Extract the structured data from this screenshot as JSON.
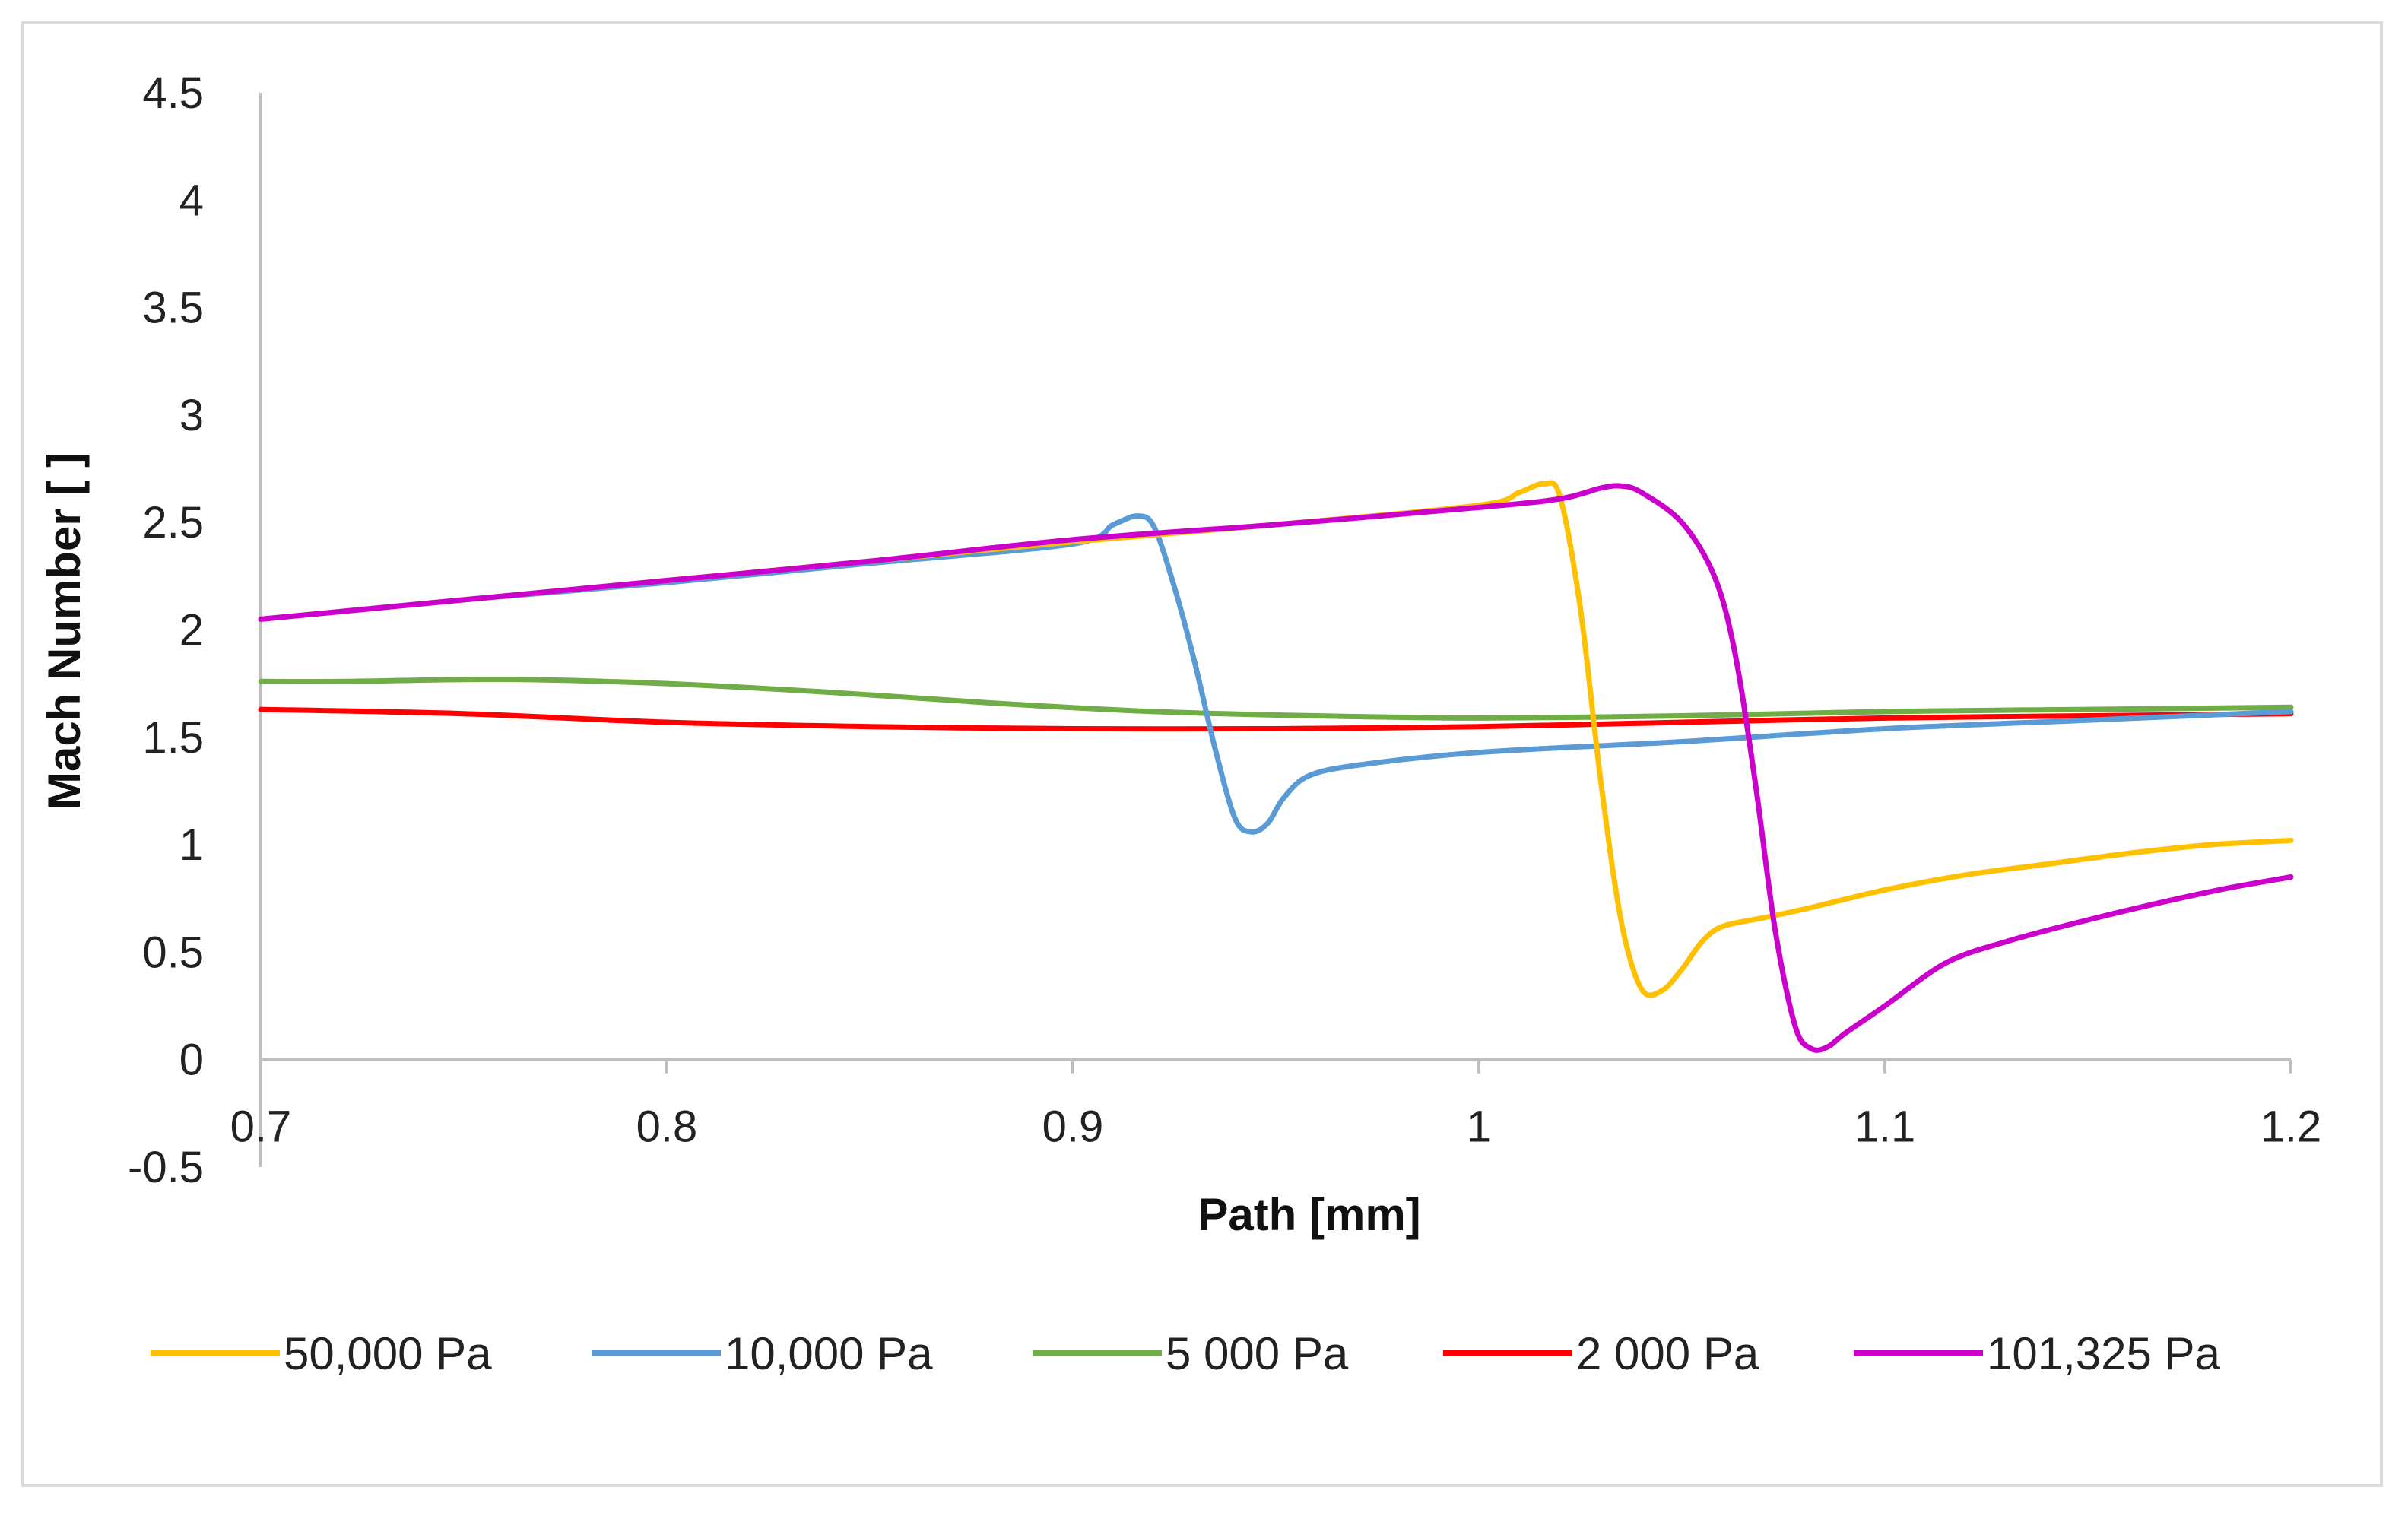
{
  "chart_data": {
    "type": "line",
    "title": "",
    "xlabel": "Path [mm]",
    "ylabel": "Mach Number [ ]",
    "xlim": [
      0.7,
      1.2
    ],
    "ylim": [
      -0.5,
      4.5
    ],
    "xticks": [
      0.7,
      0.8,
      0.9,
      1,
      1.1,
      1.2
    ],
    "xtick_labels": [
      "0.7",
      "0.8",
      "0.9",
      "1",
      "1.1",
      "1.2"
    ],
    "yticks": [
      -0.5,
      0,
      0.5,
      1,
      1.5,
      2,
      2.5,
      3,
      3.5,
      4,
      4.5
    ],
    "ytick_labels": [
      "-0.5",
      "0",
      "0.5",
      "1",
      "1.5",
      "2",
      "2.5",
      "3",
      "3.5",
      "4",
      "4.5"
    ],
    "grid": false,
    "legend_position": "bottom",
    "series": [
      {
        "name": "50,000 Pa",
        "color": "#FFC000",
        "x": [
          0.7,
          0.75,
          0.8,
          0.85,
          0.9,
          0.95,
          1.0,
          1.01,
          1.016,
          1.02,
          1.025,
          1.03,
          1.035,
          1.04,
          1.045,
          1.05,
          1.055,
          1.06,
          1.07,
          1.08,
          1.1,
          1.12,
          1.14,
          1.16,
          1.18,
          1.2
        ],
        "y": [
          2.05,
          2.14,
          2.23,
          2.32,
          2.41,
          2.49,
          2.58,
          2.64,
          2.68,
          2.62,
          2.1,
          1.3,
          0.65,
          0.33,
          0.32,
          0.42,
          0.55,
          0.62,
          0.66,
          0.7,
          0.79,
          0.86,
          0.91,
          0.96,
          1.0,
          1.02
        ]
      },
      {
        "name": "10,000 Pa",
        "color": "#5B9BD5",
        "x": [
          0.7,
          0.75,
          0.8,
          0.85,
          0.9,
          0.91,
          0.916,
          0.92,
          0.925,
          0.93,
          0.935,
          0.94,
          0.944,
          0.948,
          0.952,
          0.958,
          0.97,
          1.0,
          1.05,
          1.1,
          1.15,
          1.2
        ],
        "y": [
          2.05,
          2.14,
          2.22,
          2.31,
          2.4,
          2.49,
          2.53,
          2.48,
          2.2,
          1.85,
          1.45,
          1.12,
          1.06,
          1.1,
          1.22,
          1.32,
          1.37,
          1.43,
          1.48,
          1.54,
          1.58,
          1.62
        ]
      },
      {
        "name": "5 000 Pa",
        "color": "#70AD47",
        "x": [
          0.7,
          0.72,
          0.76,
          0.8,
          0.84,
          0.88,
          0.92,
          0.96,
          1.0,
          1.05,
          1.1,
          1.15,
          1.2
        ],
        "y": [
          1.76,
          1.76,
          1.77,
          1.75,
          1.71,
          1.66,
          1.62,
          1.6,
          1.59,
          1.6,
          1.62,
          1.63,
          1.64
        ]
      },
      {
        "name": "2 000 Pa",
        "color": "#FF0000",
        "x": [
          0.7,
          0.75,
          0.8,
          0.85,
          0.9,
          0.95,
          1.0,
          1.05,
          1.1,
          1.15,
          1.2
        ],
        "y": [
          1.63,
          1.61,
          1.57,
          1.55,
          1.54,
          1.54,
          1.55,
          1.57,
          1.59,
          1.6,
          1.61
        ]
      },
      {
        "name": "101,325 Pa",
        "color": "#CC00CC",
        "x": [
          0.7,
          0.75,
          0.8,
          0.85,
          0.9,
          0.95,
          1.0,
          1.02,
          1.03,
          1.035,
          1.04,
          1.05,
          1.058,
          1.063,
          1.068,
          1.073,
          1.078,
          1.082,
          1.086,
          1.09,
          1.1,
          1.115,
          1.13,
          1.15,
          1.17,
          1.185,
          1.2
        ],
        "y": [
          2.05,
          2.14,
          2.23,
          2.32,
          2.42,
          2.49,
          2.57,
          2.61,
          2.66,
          2.67,
          2.64,
          2.5,
          2.25,
          1.9,
          1.3,
          0.6,
          0.15,
          0.05,
          0.06,
          0.12,
          0.25,
          0.45,
          0.55,
          0.65,
          0.74,
          0.8,
          0.85
        ]
      }
    ]
  }
}
